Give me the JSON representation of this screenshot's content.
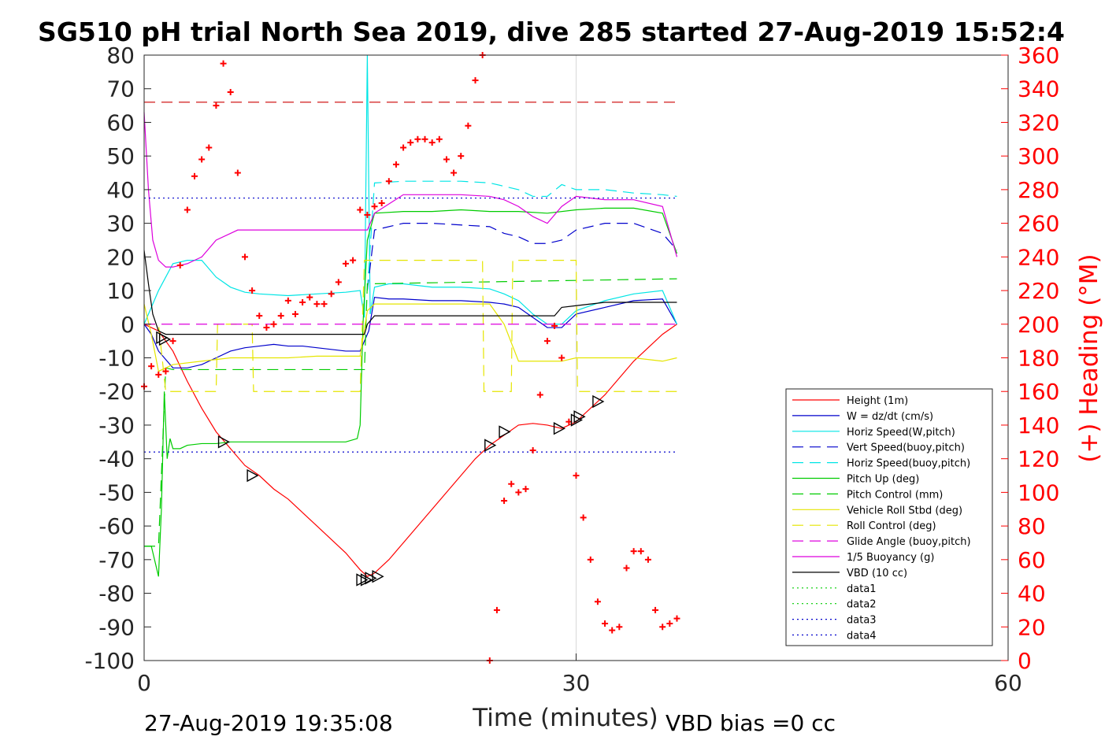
{
  "chart_data": {
    "type": "line",
    "title": "SG510 pH trial North Sea 2019, dive 285 started 27-Aug-2019 15:52:4",
    "xlabel": "Time (minutes)",
    "ylabel": "",
    "y2label": "(+) Heading (°M)",
    "xlim": [
      0,
      60
    ],
    "ylim": [
      -100,
      80
    ],
    "y2lim": [
      0,
      360
    ],
    "xticks": [
      "0",
      "30",
      "60"
    ],
    "yticks": [
      "80",
      "70",
      "60",
      "50",
      "40",
      "30",
      "20",
      "10",
      "0",
      "-10",
      "-20",
      "-30",
      "-40",
      "-50",
      "-60",
      "-70",
      "-80",
      "-90",
      "-100"
    ],
    "y2ticks": [
      "360",
      "340",
      "320",
      "300",
      "280",
      "260",
      "240",
      "220",
      "200",
      "180",
      "160",
      "140",
      "120",
      "100",
      "80",
      "60",
      "40",
      "20",
      "0"
    ],
    "grid": "vertical at x=30",
    "legend_position": "lower-right",
    "footer_left": "27-Aug-2019 19:35:08",
    "footer_right": "VBD bias =0 cc",
    "series": [
      {
        "name": "Height (1m)",
        "color": "#ff0000",
        "style": "solid",
        "x": [
          0,
          1,
          2,
          3,
          4,
          5,
          6,
          7,
          8,
          9,
          10,
          11,
          12,
          13,
          14,
          15,
          15.5,
          16,
          17,
          18,
          19,
          20,
          21,
          22,
          23,
          24,
          25,
          26,
          27,
          28,
          29,
          30,
          31,
          32,
          33,
          34,
          35,
          36,
          37
        ],
        "y": [
          0,
          -2,
          -8,
          -17,
          -25,
          -32,
          -37,
          -42,
          -45,
          -49,
          -52,
          -56,
          -60,
          -64,
          -68,
          -73,
          -75,
          -74,
          -70,
          -65,
          -60,
          -55,
          -50,
          -45,
          -40,
          -36,
          -33,
          -30,
          -29.5,
          -30,
          -31,
          -29,
          -25,
          -21,
          -16,
          -11,
          -7,
          -3,
          0
        ]
      },
      {
        "name": "W = dz/dt (cm/s)",
        "color": "#0000cc",
        "style": "solid",
        "x": [
          0,
          0.5,
          1,
          2,
          3,
          4,
          5,
          6,
          7,
          8,
          9,
          10,
          11,
          12,
          13,
          14,
          15,
          15.3,
          15.6,
          16,
          17,
          18,
          20,
          22,
          24,
          25,
          26,
          27,
          28,
          29,
          30,
          32,
          34,
          36,
          37
        ],
        "y": [
          0,
          -3,
          -8,
          -13,
          -13,
          -12,
          -10,
          -8,
          -7,
          -6.5,
          -6,
          -6.5,
          -6.5,
          -7,
          -7.5,
          -8,
          -8,
          -5,
          -2,
          8,
          7.5,
          7.5,
          7,
          7,
          6.5,
          6,
          5,
          2,
          -1,
          -1,
          3,
          5,
          7,
          7.5,
          0
        ]
      },
      {
        "name": "Horiz Speed(W,pitch)",
        "color": "#00e5e5",
        "style": "solid",
        "x": [
          0,
          0.5,
          1,
          2,
          3,
          4,
          5,
          6,
          7,
          8,
          10,
          12,
          14,
          15,
          15.3,
          15.5,
          15.7,
          16,
          17,
          18,
          20,
          22,
          24,
          25,
          26,
          27,
          28,
          29,
          30,
          32,
          34,
          36,
          37
        ],
        "y": [
          0,
          5,
          10,
          18,
          19,
          19,
          14,
          11,
          9.5,
          9,
          8.5,
          9,
          9.5,
          10,
          2,
          80,
          3,
          11,
          12,
          12,
          11,
          11,
          10.5,
          9,
          7,
          3,
          0,
          0,
          4,
          7,
          9,
          10,
          0
        ]
      },
      {
        "name": "Vert Speed(buoy,pitch)",
        "color": "#0000cc",
        "style": "dashed",
        "x": [
          15.5,
          16,
          18,
          20,
          22,
          24,
          25,
          26,
          27,
          28,
          29,
          30,
          32,
          34,
          36,
          37
        ],
        "y": [
          10,
          28,
          30,
          30,
          29.5,
          29,
          27,
          26,
          24,
          24,
          25,
          28,
          30,
          30,
          27,
          22
        ]
      },
      {
        "name": "Horiz Speed(buoy,pitch)",
        "color": "#00e5e5",
        "style": "dashed",
        "x": [
          15.5,
          16,
          18,
          20,
          22,
          24,
          25,
          26,
          27,
          28,
          29,
          30,
          32,
          34,
          36,
          37
        ],
        "y": [
          10,
          42,
          42.5,
          42.5,
          42.5,
          42,
          41,
          40,
          38,
          38,
          41.5,
          40,
          40,
          39,
          38.5,
          38
        ]
      },
      {
        "name": "Pitch Up (deg)",
        "color": "#00cc00",
        "style": "solid",
        "x": [
          0,
          0.5,
          1,
          1.2,
          1.4,
          1.6,
          1.8,
          2,
          2.5,
          3,
          4,
          5,
          6,
          8,
          10,
          12,
          14,
          14.8,
          15,
          15.2,
          15.5,
          16,
          18,
          20,
          22,
          24,
          26,
          28,
          30,
          32,
          34,
          36,
          37
        ],
        "y": [
          -66,
          -66,
          -75,
          -55,
          -20,
          -40,
          -34,
          -37,
          -37,
          -36,
          -35.5,
          -35.5,
          -35,
          -35,
          -35,
          -35,
          -35,
          -34,
          -30,
          0,
          25,
          33,
          33.5,
          33.5,
          34,
          33.5,
          33.5,
          33,
          34,
          34.5,
          34.5,
          33,
          21
        ]
      },
      {
        "name": "Pitch Control (mm)",
        "color": "#00cc00",
        "style": "dashed",
        "x": [
          0,
          1,
          1.5,
          2,
          15.3,
          15.5,
          37
        ],
        "y": [
          -66,
          -66,
          -13,
          -13.5,
          -13.5,
          12,
          13.5
        ]
      },
      {
        "name": "Vehicle Roll Stbd (deg)",
        "color": "#e5e500",
        "style": "solid",
        "x": [
          0,
          0.5,
          1,
          2,
          4,
          6,
          8,
          10,
          12,
          14,
          15,
          15.5,
          16,
          18,
          20,
          22,
          24,
          25,
          26,
          28,
          29,
          30,
          32,
          34,
          36,
          37
        ],
        "y": [
          6,
          -3,
          -14,
          -12,
          -11,
          -10,
          -10,
          -10,
          -9.5,
          -9.5,
          -9.5,
          4,
          6,
          6,
          6,
          6,
          6,
          0,
          -11,
          -11,
          -11,
          -10,
          -10,
          -10,
          -11,
          -10
        ]
      },
      {
        "name": "Roll Control (deg)",
        "color": "#e5e500",
        "style": "dashed",
        "x": [
          0,
          1,
          1.5,
          5,
          5.1,
          7.5,
          7.6,
          15,
          15.3,
          23.5,
          23.6,
          25.5,
          25.6,
          30,
          30.1,
          31.5,
          31.6,
          37
        ],
        "y": [
          0,
          0,
          -20,
          -20,
          0,
          0,
          -20,
          -20,
          19,
          19,
          -20,
          -20,
          19,
          19,
          -20,
          -20,
          -20,
          -20
        ]
      },
      {
        "name": "Glide Angle (buoy,pitch)",
        "color": "#dd00dd",
        "style": "dashed",
        "x": [
          0,
          15.5,
          37
        ],
        "y": [
          0,
          0,
          0
        ]
      },
      {
        "name": "1/5 Buoyancy (g)",
        "color": "#dd00dd",
        "style": "solid",
        "x": [
          0,
          0.3,
          0.6,
          1,
          1.5,
          2,
          3,
          4,
          5,
          6,
          6.5,
          7,
          8,
          10,
          12,
          14,
          15,
          15.5,
          16,
          18,
          20,
          22,
          24,
          25,
          26,
          27,
          28,
          29,
          30,
          32,
          34,
          36,
          37
        ],
        "y": [
          63,
          40,
          25,
          19,
          17,
          17,
          18,
          20,
          25,
          27,
          28,
          28,
          28,
          28,
          28,
          28,
          28,
          28,
          33,
          38.5,
          38.5,
          38.5,
          38,
          37,
          35,
          32,
          30,
          35,
          38,
          37,
          37,
          35,
          20
        ]
      },
      {
        "name": "VBD (10 cc)",
        "color": "#000000",
        "style": "solid",
        "x": [
          0,
          0.3,
          0.6,
          1,
          1.5,
          2,
          15.3,
          15.5,
          16,
          28.5,
          29,
          30,
          31,
          32,
          37
        ],
        "y": [
          22,
          12,
          3,
          -2,
          -3,
          -3,
          -3,
          0,
          2.5,
          2.5,
          5,
          5.5,
          6,
          6.5,
          6.5
        ]
      },
      {
        "name": "data1",
        "color": "#00cc00",
        "style": "dotted",
        "x": [],
        "y": []
      },
      {
        "name": "data2",
        "color": "#00cc00",
        "style": "dotted",
        "x": [],
        "y": []
      },
      {
        "name": "data3",
        "color": "#0000cc",
        "style": "dotted",
        "x": [
          0,
          37
        ],
        "y": [
          37.5,
          37.5
        ]
      },
      {
        "name": "data4",
        "color": "#0000cc",
        "style": "dotted",
        "x": [
          0,
          37
        ],
        "y": [
          -38,
          -38
        ]
      }
    ],
    "extra_lines": [
      {
        "color": "#cc0000",
        "style": "dashed",
        "x": [
          0,
          37
        ],
        "y": [
          66,
          66
        ]
      }
    ],
    "heading": {
      "color": "#ff0000",
      "marker": "+",
      "x": [
        0,
        0.5,
        1,
        1.5,
        2,
        2.5,
        3,
        3.5,
        4,
        4.5,
        5,
        5.5,
        6,
        6.5,
        7,
        7.5,
        8,
        8.5,
        9,
        9.5,
        10,
        10.5,
        11,
        11.5,
        12,
        12.5,
        13,
        13.5,
        14,
        14.5,
        15,
        15.5,
        16,
        16.5,
        17,
        17.5,
        18,
        18.5,
        19,
        19.5,
        20,
        20.5,
        21,
        21.5,
        22,
        22.5,
        23,
        23.5,
        24,
        24.5,
        25,
        25.5,
        26,
        26.5,
        27,
        27.5,
        28,
        28.5,
        29,
        29.5,
        30,
        30.5,
        31,
        31.5,
        32,
        32.5,
        33,
        33.5,
        34,
        34.5,
        35,
        35.5,
        36,
        36.5,
        37
      ],
      "y": [
        163,
        175,
        170,
        172,
        190,
        235,
        268,
        288,
        298,
        305,
        330,
        355,
        338,
        290,
        240,
        220,
        205,
        198,
        200,
        205,
        214,
        206,
        213,
        216,
        212,
        212,
        218,
        225,
        236,
        238,
        268,
        265,
        270,
        272,
        285,
        295,
        305,
        308,
        310,
        310,
        308,
        310,
        298,
        290,
        300,
        318,
        345,
        370,
        0,
        30,
        95,
        105,
        100,
        102,
        125,
        158,
        190,
        199,
        180,
        142,
        110,
        85,
        60,
        35,
        22,
        18,
        20,
        55,
        65,
        65,
        60,
        30,
        20,
        22,
        25
      ],
      "segments": [
        [
          0,
          47
        ],
        [
          47,
          75
        ]
      ]
    },
    "triangles": [
      {
        "x": 1.2,
        "y": -4
      },
      {
        "x": 1.4,
        "y": -4.5
      },
      {
        "x": 5.5,
        "y": -35
      },
      {
        "x": 7.5,
        "y": -45
      },
      {
        "x": 15.1,
        "y": -76
      },
      {
        "x": 15.4,
        "y": -76
      },
      {
        "x": 15.7,
        "y": -75.5
      },
      {
        "x": 16.2,
        "y": -75
      },
      {
        "x": 24,
        "y": -36
      },
      {
        "x": 25,
        "y": -32
      },
      {
        "x": 28.8,
        "y": -31
      },
      {
        "x": 30,
        "y": -28.5
      },
      {
        "x": 30.2,
        "y": -27.5
      },
      {
        "x": 31.5,
        "y": -23
      }
    ]
  }
}
